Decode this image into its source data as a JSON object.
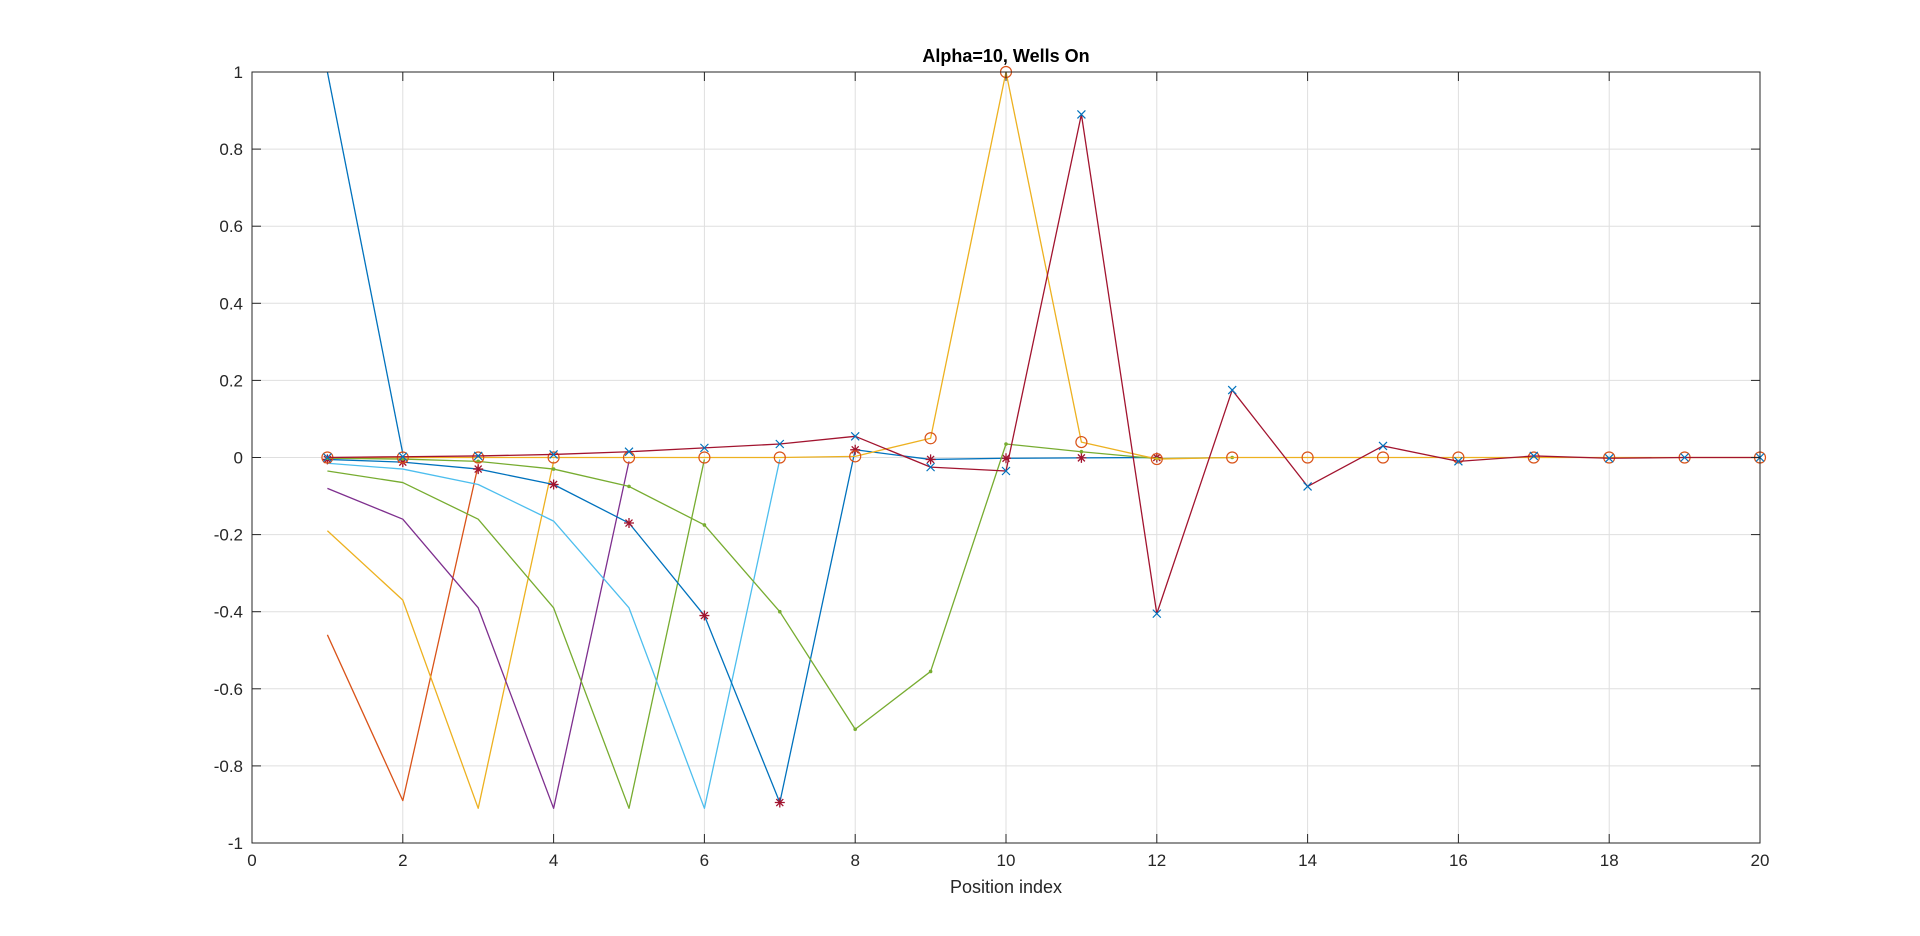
{
  "chart_data": {
    "type": "line",
    "title": "Alpha=10, Wells On",
    "xlabel": "Position index",
    "ylabel": "",
    "xlim": [
      0,
      20
    ],
    "ylim": [
      -1,
      1
    ],
    "xticks": [
      0,
      2,
      4,
      6,
      8,
      10,
      12,
      14,
      16,
      18,
      20
    ],
    "yticks": [
      -1,
      -0.8,
      -0.6,
      -0.4,
      -0.2,
      0,
      0.2,
      0.4,
      0.6,
      0.8,
      1
    ],
    "xtick_labels": [
      "0",
      "2",
      "4",
      "6",
      "8",
      "10",
      "12",
      "14",
      "16",
      "18",
      "20"
    ],
    "ytick_labels": [
      "-1",
      "-0.8",
      "-0.6",
      "-0.4",
      "-0.2",
      "0",
      "0.2",
      "0.4",
      "0.6",
      "0.8",
      "1"
    ],
    "grid": true,
    "legend": "none",
    "series": [
      {
        "color": "#0072BD",
        "marker": "none",
        "x": [
          1,
          2
        ],
        "y": [
          1.0,
          0.01
        ]
      },
      {
        "color": "#D95319",
        "marker": "none",
        "x": [
          1,
          2,
          3
        ],
        "y": [
          -0.46,
          -0.89,
          -0.02
        ]
      },
      {
        "color": "#EDB120",
        "marker": "none",
        "x": [
          1,
          2,
          3,
          4
        ],
        "y": [
          -0.19,
          -0.37,
          -0.91,
          -0.01
        ]
      },
      {
        "color": "#7E2F8E",
        "marker": "none",
        "x": [
          1,
          2,
          3,
          4,
          5
        ],
        "y": [
          -0.08,
          -0.16,
          -0.39,
          -0.91,
          -0.01
        ]
      },
      {
        "color": "#77AC30",
        "marker": "none",
        "x": [
          1,
          2,
          3,
          4,
          5,
          6
        ],
        "y": [
          -0.035,
          -0.065,
          -0.16,
          -0.39,
          -0.91,
          -0.005
        ]
      },
      {
        "color": "#4DBEEE",
        "marker": "none",
        "x": [
          1,
          2,
          3,
          4,
          5,
          6,
          7
        ],
        "y": [
          -0.015,
          -0.03,
          -0.07,
          -0.165,
          -0.39,
          -0.91,
          -0.005
        ]
      },
      {
        "color": "#0072BD",
        "marker": "*",
        "markerColor": "#A2142F",
        "x": [
          1,
          2,
          3,
          4,
          5,
          6,
          7,
          8,
          9,
          10,
          11,
          12
        ],
        "y": [
          -0.005,
          -0.012,
          -0.03,
          -0.07,
          -0.17,
          -0.41,
          -0.895,
          0.02,
          -0.005,
          -0.002,
          -0.001,
          0.0
        ]
      },
      {
        "color": "#77AC30",
        "marker": ".",
        "x": [
          1,
          2,
          3,
          4,
          5,
          6,
          7,
          8,
          9,
          10,
          11,
          12,
          13
        ],
        "y": [
          -0.002,
          -0.004,
          -0.01,
          -0.03,
          -0.075,
          -0.175,
          -0.4,
          -0.705,
          -0.555,
          0.035,
          0.015,
          -0.003,
          0.0
        ]
      },
      {
        "color": "#EDB120",
        "marker": "o",
        "markerColor": "#D95319",
        "x": [
          1,
          2,
          3,
          4,
          5,
          6,
          7,
          8,
          9,
          10,
          11,
          12,
          13,
          14,
          15,
          16,
          17,
          18,
          19,
          20
        ],
        "y": [
          0.0,
          0.0,
          0.0,
          0.0,
          0.0,
          0.0,
          0.0,
          0.003,
          0.05,
          1.0,
          0.04,
          -0.004,
          0.0,
          0.0,
          0.0,
          0.0,
          0.0,
          0.0,
          0.0,
          0.0
        ]
      },
      {
        "color": "#A2142F",
        "marker": "x",
        "markerColor": "#0072BD",
        "x": [
          1,
          2,
          3,
          4,
          5,
          6,
          7,
          8,
          9,
          10,
          11,
          12,
          13,
          14,
          15,
          16,
          17,
          18,
          19,
          20
        ],
        "y": [
          0.0,
          0.002,
          0.004,
          0.008,
          0.015,
          0.025,
          0.035,
          0.055,
          -0.025,
          -0.035,
          0.89,
          -0.405,
          0.175,
          -0.075,
          0.03,
          -0.01,
          0.004,
          -0.002,
          0.0,
          0.0
        ]
      }
    ]
  }
}
